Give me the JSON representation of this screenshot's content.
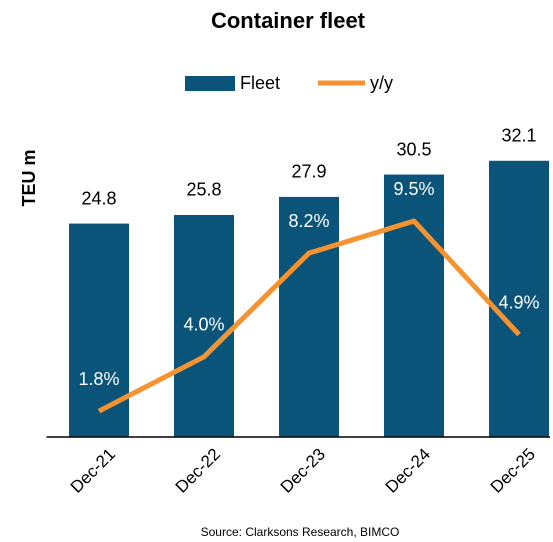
{
  "chart_data": {
    "type": "bar",
    "title": "Container fleet",
    "ylabel": "TEU m",
    "source": "Source: Clarksons Research, BIMCO",
    "categories": [
      "Dec-21",
      "Dec-22",
      "Dec-23",
      "Dec-24",
      "Dec-25"
    ],
    "series": [
      {
        "name": "Fleet",
        "type": "bar",
        "color": "#0b5479",
        "values": [
          24.8,
          25.8,
          27.9,
          30.5,
          32.1
        ]
      },
      {
        "name": "y/y",
        "type": "line",
        "axis": "y2",
        "color": "#f59331",
        "values": [
          1.8,
          4.0,
          8.2,
          9.5,
          4.9
        ],
        "value_labels": [
          "1.8%",
          "4.0%",
          "8.2%",
          "9.5%",
          "4.9%"
        ]
      }
    ],
    "ylim": [
      0,
      38
    ],
    "y2lim": [
      0.75,
      14
    ],
    "legend": "top"
  }
}
